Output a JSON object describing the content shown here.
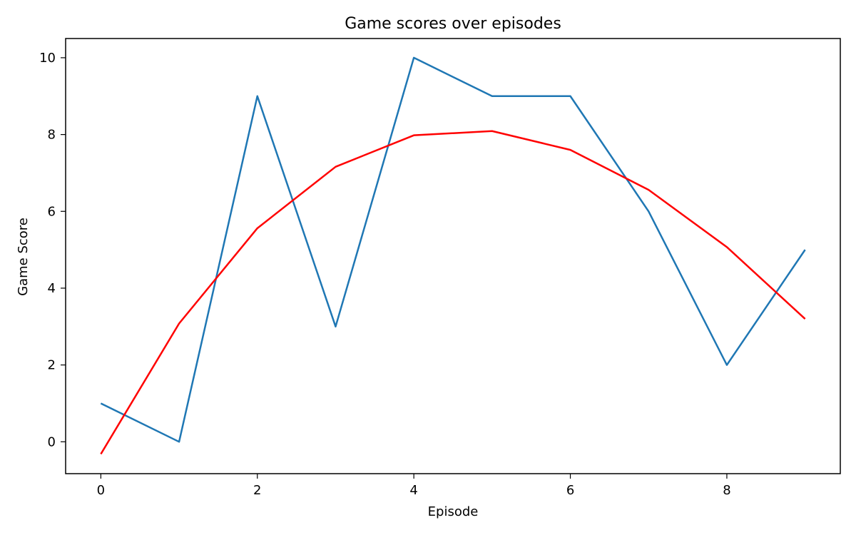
{
  "chart_data": {
    "type": "line",
    "title": "Game scores over episodes",
    "xlabel": "Episode",
    "ylabel": "Game Score",
    "x": [
      0,
      1,
      2,
      3,
      4,
      5,
      6,
      7,
      8,
      9
    ],
    "xlim": [
      -0.45,
      9.45
    ],
    "ylim": [
      -0.83,
      10.5
    ],
    "xticks": [
      0,
      2,
      4,
      6,
      8
    ],
    "yticks": [
      0,
      2,
      4,
      6,
      8,
      10
    ],
    "grid": false,
    "series": [
      {
        "color": "#1f77b4",
        "values": [
          1,
          0,
          9,
          3,
          10,
          9,
          9,
          6,
          2,
          5
        ]
      },
      {
        "color": "#ff0000",
        "values": [
          -0.32,
          3.08,
          5.56,
          7.16,
          7.98,
          8.09,
          7.6,
          6.56,
          5.07,
          3.2
        ]
      }
    ]
  }
}
